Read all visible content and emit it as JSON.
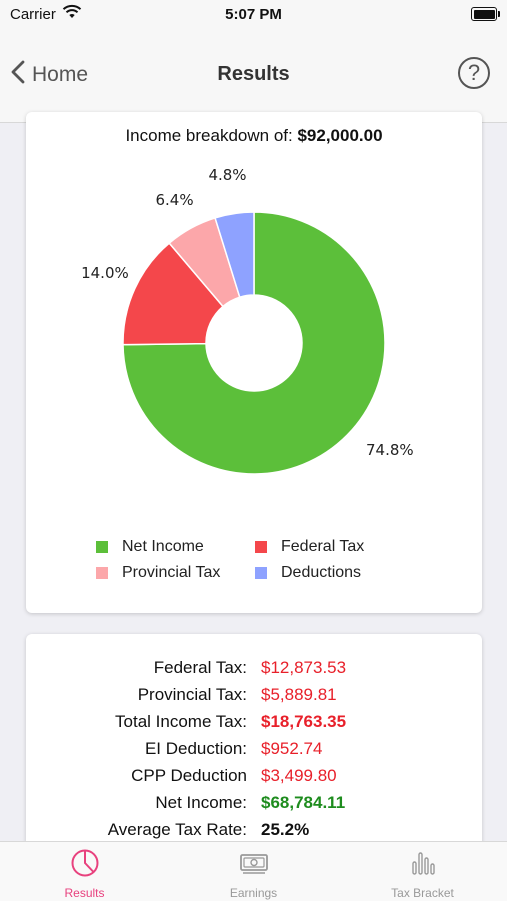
{
  "status_bar": {
    "carrier": "Carrier",
    "time": "5:07 PM"
  },
  "nav": {
    "back_label": "Home",
    "title": "Results",
    "help_symbol": "?"
  },
  "breakdown": {
    "prefix": "Income breakdown of:",
    "amount": "$92,000.00"
  },
  "chart_data": {
    "type": "pie",
    "donut": true,
    "slices": [
      {
        "name": "Net Income",
        "value": 74.8,
        "label": "74.8%",
        "color": "#5cbf3a"
      },
      {
        "name": "Federal Tax",
        "value": 14.0,
        "label": "14.0%",
        "color": "#f4474b"
      },
      {
        "name": "Provincial Tax",
        "value": 6.4,
        "label": "6.4%",
        "color": "#fca7aa"
      },
      {
        "name": "Deductions",
        "value": 4.8,
        "label": "4.8%",
        "color": "#8ea2ff"
      }
    ],
    "legend_placement": "bottom"
  },
  "summary": {
    "rows": [
      {
        "label": "Federal Tax:",
        "value": "$12,873.53",
        "color": "#e8202a"
      },
      {
        "label": "Provincial Tax:",
        "value": "$5,889.81",
        "color": "#e8202a"
      },
      {
        "label": "Total Income Tax:",
        "value": "$18,763.35",
        "color": "#e8202a"
      },
      {
        "label": "EI Deduction:",
        "value": "$952.74",
        "color": "#e8202a"
      },
      {
        "label": "CPP Deduction",
        "value": "$3,499.80",
        "color": "#e8202a"
      },
      {
        "label": "Net Income:",
        "value": "$68,784.11",
        "color": "#1e8c1e"
      },
      {
        "label": "Average Tax Rate:",
        "value": "25.2%",
        "color": "#111111"
      }
    ]
  },
  "tabs": [
    {
      "label": "Results",
      "icon": "pie-chart-icon",
      "active": true
    },
    {
      "label": "Earnings",
      "icon": "banknote-icon",
      "active": false
    },
    {
      "label": "Tax Bracket",
      "icon": "bar-chart-icon",
      "active": false
    }
  ],
  "colors": {
    "accent": "#e8417e",
    "inactive": "#999999"
  }
}
